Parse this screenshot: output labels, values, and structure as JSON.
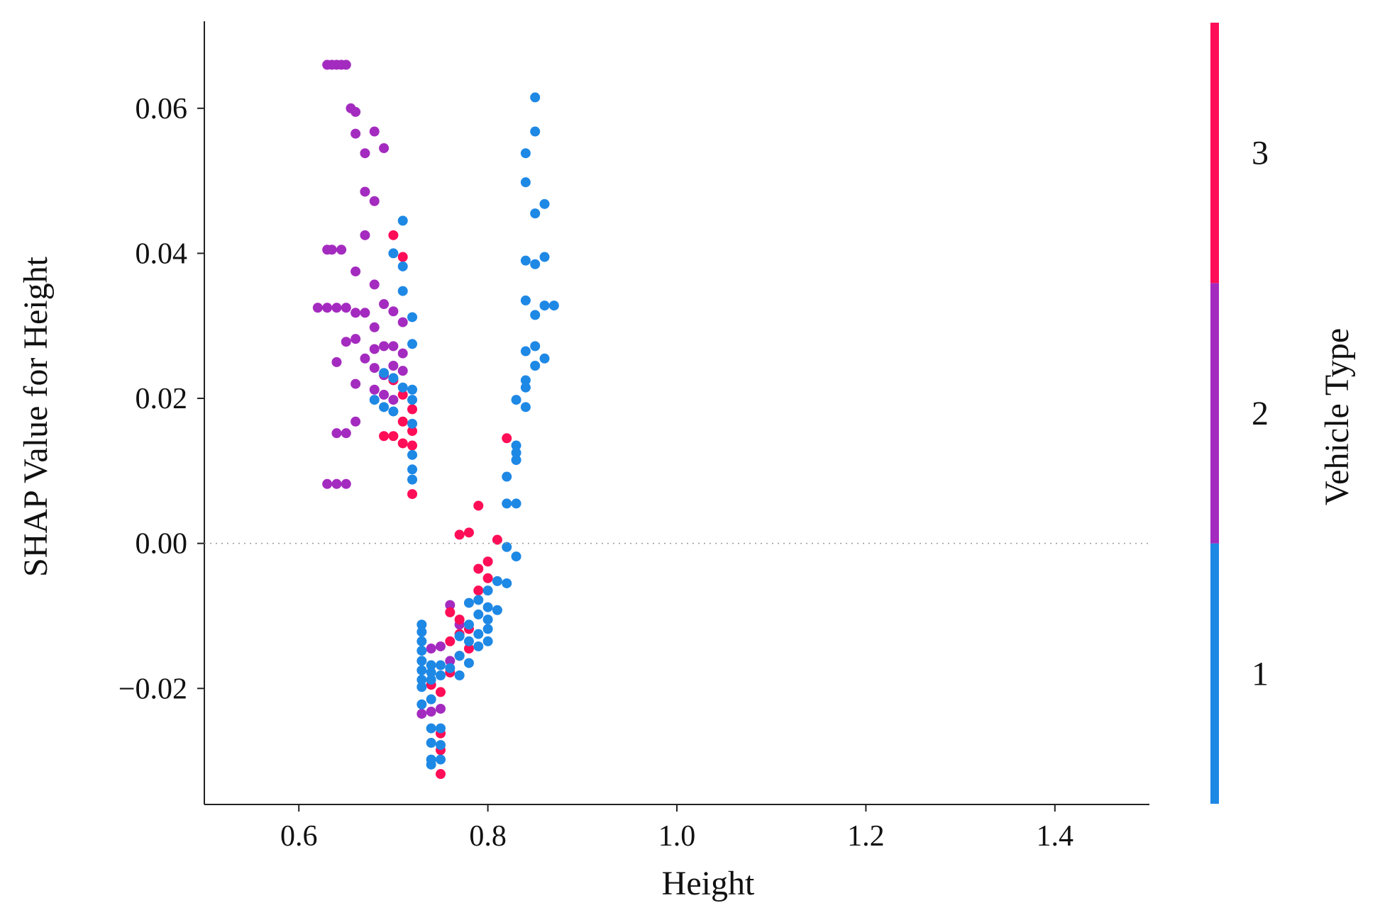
{
  "chart_data": {
    "type": "scatter",
    "title": "",
    "xlabel": "Height",
    "ylabel": "SHAP Value for Height",
    "xlim": [
      0.5,
      1.5
    ],
    "ylim": [
      -0.036,
      0.072
    ],
    "x_ticks": [
      {
        "value": 0.6,
        "label": "0.6"
      },
      {
        "value": 0.8,
        "label": "0.8"
      },
      {
        "value": 1.0,
        "label": "1.0"
      },
      {
        "value": 1.2,
        "label": "1.2"
      },
      {
        "value": 1.4,
        "label": "1.4"
      }
    ],
    "y_ticks": [
      {
        "value": -0.02,
        "label": "−0.02"
      },
      {
        "value": 0.0,
        "label": "0.00"
      },
      {
        "value": 0.02,
        "label": "0.02"
      },
      {
        "value": 0.04,
        "label": "0.04"
      },
      {
        "value": 0.06,
        "label": "0.06"
      }
    ],
    "zero_line": true,
    "grid": false,
    "colorbar": {
      "title": "Vehicle Type",
      "range": [
        0.5,
        3.5
      ],
      "segments": [
        {
          "from": 0.5,
          "to": 1.5,
          "color": "#1e88e5"
        },
        {
          "from": 1.5,
          "to": 2.5,
          "color": "#a42bbf"
        },
        {
          "from": 2.5,
          "to": 3.5,
          "color": "#ff0d57"
        }
      ],
      "ticks": [
        {
          "value": 1,
          "label": "1"
        },
        {
          "value": 2,
          "label": "2"
        },
        {
          "value": 3,
          "label": "3"
        }
      ]
    },
    "series": [
      {
        "color_value": 2,
        "color": "#a42bbf",
        "points": [
          [
            0.63,
            0.066
          ],
          [
            0.635,
            0.066
          ],
          [
            0.64,
            0.066
          ],
          [
            0.645,
            0.066
          ],
          [
            0.65,
            0.066
          ],
          [
            0.655,
            0.06
          ],
          [
            0.66,
            0.0595
          ],
          [
            0.66,
            0.0565
          ],
          [
            0.68,
            0.0568
          ],
          [
            0.69,
            0.0545
          ],
          [
            0.67,
            0.0538
          ],
          [
            0.67,
            0.0485
          ],
          [
            0.68,
            0.0472
          ],
          [
            0.67,
            0.0425
          ],
          [
            0.63,
            0.0405
          ],
          [
            0.635,
            0.0405
          ],
          [
            0.645,
            0.0405
          ],
          [
            0.66,
            0.0375
          ],
          [
            0.68,
            0.0357
          ],
          [
            0.62,
            0.0325
          ],
          [
            0.63,
            0.0325
          ],
          [
            0.64,
            0.0325
          ],
          [
            0.65,
            0.0325
          ],
          [
            0.66,
            0.0318
          ],
          [
            0.67,
            0.0318
          ],
          [
            0.69,
            0.033
          ],
          [
            0.7,
            0.032
          ],
          [
            0.71,
            0.0305
          ],
          [
            0.68,
            0.0298
          ],
          [
            0.65,
            0.0278
          ],
          [
            0.66,
            0.0282
          ],
          [
            0.69,
            0.0272
          ],
          [
            0.7,
            0.0272
          ],
          [
            0.68,
            0.0268
          ],
          [
            0.71,
            0.0262
          ],
          [
            0.64,
            0.025
          ],
          [
            0.67,
            0.0255
          ],
          [
            0.68,
            0.0242
          ],
          [
            0.7,
            0.0245
          ],
          [
            0.69,
            0.0232
          ],
          [
            0.71,
            0.0238
          ],
          [
            0.66,
            0.022
          ],
          [
            0.68,
            0.0212
          ],
          [
            0.69,
            0.0205
          ],
          [
            0.7,
            0.0198
          ],
          [
            0.66,
            0.0168
          ],
          [
            0.64,
            0.0152
          ],
          [
            0.65,
            0.0152
          ],
          [
            0.63,
            0.0082
          ],
          [
            0.64,
            0.0082
          ],
          [
            0.65,
            0.0082
          ],
          [
            0.74,
            -0.0145
          ],
          [
            0.75,
            -0.0142
          ],
          [
            0.73,
            -0.0235
          ],
          [
            0.74,
            -0.0232
          ],
          [
            0.75,
            -0.0228
          ],
          [
            0.76,
            -0.0085
          ],
          [
            0.77,
            -0.0112
          ],
          [
            0.76,
            -0.0162
          ]
        ]
      },
      {
        "color_value": 3,
        "color": "#ff0d57",
        "points": [
          [
            0.7,
            0.0425
          ],
          [
            0.71,
            0.0395
          ],
          [
            0.7,
            0.0225
          ],
          [
            0.71,
            0.0205
          ],
          [
            0.72,
            0.0185
          ],
          [
            0.71,
            0.0168
          ],
          [
            0.72,
            0.0155
          ],
          [
            0.69,
            0.0148
          ],
          [
            0.7,
            0.0148
          ],
          [
            0.71,
            0.0138
          ],
          [
            0.72,
            0.0135
          ],
          [
            0.72,
            0.0068
          ],
          [
            0.82,
            0.0145
          ],
          [
            0.79,
            0.0052
          ],
          [
            0.77,
            0.0012
          ],
          [
            0.78,
            0.0015
          ],
          [
            0.81,
            0.0005
          ],
          [
            0.8,
            -0.0025
          ],
          [
            0.79,
            -0.0035
          ],
          [
            0.76,
            -0.0095
          ],
          [
            0.77,
            -0.0105
          ],
          [
            0.78,
            -0.0118
          ],
          [
            0.77,
            -0.0125
          ],
          [
            0.76,
            -0.0135
          ],
          [
            0.78,
            -0.0145
          ],
          [
            0.77,
            -0.0155
          ],
          [
            0.76,
            -0.0178
          ],
          [
            0.74,
            -0.0195
          ],
          [
            0.75,
            -0.0205
          ],
          [
            0.75,
            -0.0262
          ],
          [
            0.75,
            -0.0285
          ],
          [
            0.75,
            -0.0318
          ],
          [
            0.79,
            -0.0065
          ],
          [
            0.8,
            -0.0048
          ]
        ]
      },
      {
        "color_value": 1,
        "color": "#1e88e5",
        "points": [
          [
            0.85,
            0.0615
          ],
          [
            0.85,
            0.0568
          ],
          [
            0.84,
            0.0538
          ],
          [
            0.84,
            0.0498
          ],
          [
            0.86,
            0.0468
          ],
          [
            0.85,
            0.0455
          ],
          [
            0.84,
            0.039
          ],
          [
            0.85,
            0.0385
          ],
          [
            0.86,
            0.0395
          ],
          [
            0.84,
            0.0335
          ],
          [
            0.86,
            0.0328
          ],
          [
            0.87,
            0.0328
          ],
          [
            0.85,
            0.0315
          ],
          [
            0.85,
            0.0272
          ],
          [
            0.84,
            0.0265
          ],
          [
            0.86,
            0.0255
          ],
          [
            0.85,
            0.0245
          ],
          [
            0.84,
            0.0225
          ],
          [
            0.84,
            0.0215
          ],
          [
            0.83,
            0.0198
          ],
          [
            0.84,
            0.0188
          ],
          [
            0.83,
            0.0135
          ],
          [
            0.83,
            0.0125
          ],
          [
            0.83,
            0.0115
          ],
          [
            0.82,
            0.0092
          ],
          [
            0.82,
            0.0055
          ],
          [
            0.83,
            0.0055
          ],
          [
            0.82,
            -0.0005
          ],
          [
            0.83,
            -0.0018
          ],
          [
            0.81,
            -0.0052
          ],
          [
            0.82,
            -0.0055
          ],
          [
            0.8,
            -0.0065
          ],
          [
            0.79,
            -0.0078
          ],
          [
            0.78,
            -0.0082
          ],
          [
            0.8,
            -0.0088
          ],
          [
            0.81,
            -0.0092
          ],
          [
            0.79,
            -0.0098
          ],
          [
            0.8,
            -0.0105
          ],
          [
            0.78,
            -0.0112
          ],
          [
            0.79,
            -0.0125
          ],
          [
            0.8,
            -0.0118
          ],
          [
            0.77,
            -0.0128
          ],
          [
            0.78,
            -0.0135
          ],
          [
            0.8,
            -0.0135
          ],
          [
            0.79,
            -0.0142
          ],
          [
            0.77,
            -0.0155
          ],
          [
            0.78,
            -0.0165
          ],
          [
            0.76,
            -0.0172
          ],
          [
            0.77,
            -0.0182
          ],
          [
            0.73,
            -0.0112
          ],
          [
            0.73,
            -0.0122
          ],
          [
            0.73,
            -0.0135
          ],
          [
            0.73,
            -0.0148
          ],
          [
            0.73,
            -0.0162
          ],
          [
            0.73,
            -0.0175
          ],
          [
            0.73,
            -0.0188
          ],
          [
            0.73,
            -0.0198
          ],
          [
            0.74,
            -0.0168
          ],
          [
            0.74,
            -0.0178
          ],
          [
            0.74,
            -0.0188
          ],
          [
            0.75,
            -0.0168
          ],
          [
            0.75,
            -0.0182
          ],
          [
            0.74,
            -0.0215
          ],
          [
            0.73,
            -0.0222
          ],
          [
            0.74,
            -0.0255
          ],
          [
            0.75,
            -0.0255
          ],
          [
            0.74,
            -0.0275
          ],
          [
            0.75,
            -0.0278
          ],
          [
            0.74,
            -0.0298
          ],
          [
            0.75,
            -0.0298
          ],
          [
            0.74,
            -0.0305
          ],
          [
            0.71,
            0.0445
          ],
          [
            0.7,
            0.04
          ],
          [
            0.71,
            0.0382
          ],
          [
            0.71,
            0.0348
          ],
          [
            0.72,
            0.0312
          ],
          [
            0.72,
            0.0275
          ],
          [
            0.69,
            0.0235
          ],
          [
            0.7,
            0.0228
          ],
          [
            0.71,
            0.0215
          ],
          [
            0.72,
            0.0212
          ],
          [
            0.72,
            0.0198
          ],
          [
            0.69,
            0.0188
          ],
          [
            0.7,
            0.0182
          ],
          [
            0.68,
            0.0198
          ],
          [
            0.72,
            0.0165
          ],
          [
            0.72,
            0.0122
          ],
          [
            0.72,
            0.0102
          ],
          [
            0.72,
            0.0088
          ]
        ]
      }
    ]
  }
}
